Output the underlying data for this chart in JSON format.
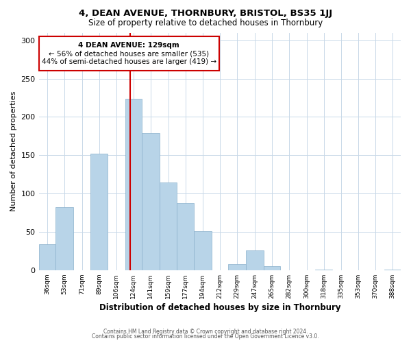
{
  "title": "4, DEAN AVENUE, THORNBURY, BRISTOL, BS35 1JJ",
  "subtitle": "Size of property relative to detached houses in Thornbury",
  "xlabel": "Distribution of detached houses by size in Thornbury",
  "ylabel": "Number of detached properties",
  "bar_color": "#b8d4e8",
  "bar_edgecolor": "#8ab0cc",
  "vline_color": "#cc0000",
  "vline_x_bin_index": 5,
  "categories": [
    "36sqm",
    "53sqm",
    "71sqm",
    "89sqm",
    "106sqm",
    "124sqm",
    "141sqm",
    "159sqm",
    "177sqm",
    "194sqm",
    "212sqm",
    "229sqm",
    "247sqm",
    "265sqm",
    "282sqm",
    "300sqm",
    "318sqm",
    "335sqm",
    "353sqm",
    "370sqm",
    "388sqm"
  ],
  "bin_edges": [
    36,
    53,
    71,
    89,
    106,
    124,
    141,
    159,
    177,
    194,
    212,
    229,
    247,
    265,
    282,
    300,
    318,
    335,
    353,
    370,
    388,
    405
  ],
  "bar_heights": [
    34,
    82,
    0,
    152,
    0,
    224,
    179,
    114,
    88,
    51,
    0,
    8,
    26,
    5,
    0,
    0,
    1,
    0,
    0,
    0,
    1
  ],
  "ylim": [
    0,
    310
  ],
  "yticks": [
    0,
    50,
    100,
    150,
    200,
    250,
    300
  ],
  "annotation_title": "4 DEAN AVENUE: 129sqm",
  "annotation_line1": "← 56% of detached houses are smaller (535)",
  "annotation_line2": "44% of semi-detached houses are larger (419) →",
  "footer1": "Contains HM Land Registry data © Crown copyright and database right 2024.",
  "footer2": "Contains public sector information licensed under the Open Government Licence v3.0.",
  "background_color": "#ffffff",
  "grid_color": "#c8d8e8"
}
